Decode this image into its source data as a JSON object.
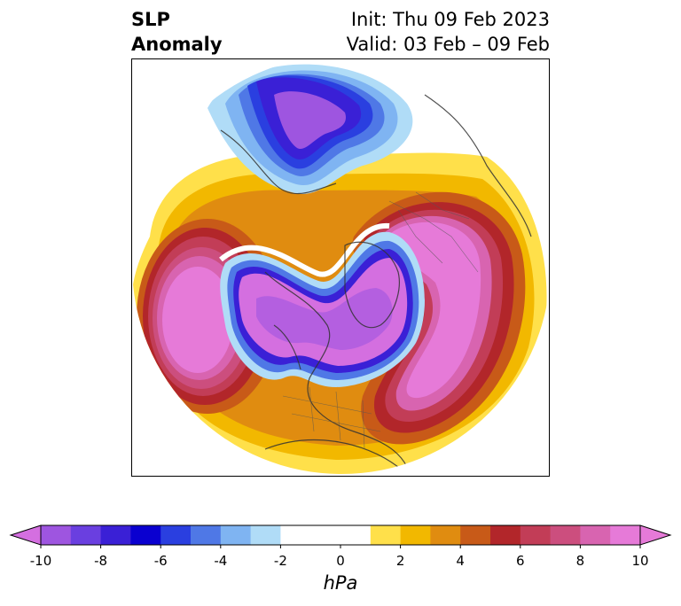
{
  "title": {
    "left_line1": "SLP",
    "left_line2": "Anomaly",
    "right_line1": "Init: Thu 09 Feb 2023",
    "right_line2": "Valid: 03 Feb – 09 Feb"
  },
  "colorbar": {
    "unit": "hPa",
    "levels": [
      -10,
      -9,
      -8,
      -7,
      -6,
      -5,
      -4,
      -3,
      -2,
      -1,
      1,
      2,
      3,
      4,
      5,
      6,
      7,
      8,
      9,
      10
    ],
    "ticks": [
      "-10",
      "-8",
      "-6",
      "-4",
      "-2",
      "0",
      "2",
      "4",
      "6",
      "8",
      "10"
    ],
    "colors": {
      "below": "#d46fe0",
      "bins": [
        "#9e55e0",
        "#6a3fe0",
        "#3a20d6",
        "#0a00d0",
        "#2a3fe0",
        "#4f78e6",
        "#7fb4f2",
        "#b0dcf7",
        "#ffffff",
        "#ffffff",
        "#ffe04a",
        "#f2b800",
        "#e08c10",
        "#c85a18",
        "#b2262a",
        "#c23d57",
        "#cc4e7e",
        "#d864b0",
        "#e67ad8"
      ],
      "above": "#e67ad8"
    }
  },
  "map": {
    "projection": "north-polar-stereographic",
    "features": [
      "coastlines",
      "country-borders",
      "state-borders"
    ],
    "anomalies": [
      {
        "region": "Siberia-Arctic",
        "sign": "negative",
        "peak_hpa": -10
      },
      {
        "region": "North-Pacific",
        "sign": "positive",
        "peak_hpa": 10
      },
      {
        "region": "North-Atlantic",
        "sign": "positive",
        "peak_hpa": 10
      },
      {
        "region": "Europe-Russia",
        "sign": "positive",
        "peak_hpa": 10
      },
      {
        "region": "Greenland-Canada",
        "sign": "negative",
        "peak_hpa": -10
      }
    ]
  }
}
